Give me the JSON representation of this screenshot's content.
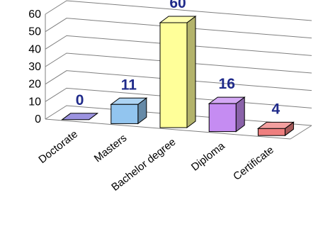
{
  "chart_data": {
    "type": "bar",
    "title": "",
    "xlabel": "",
    "ylabel": "",
    "categories": [
      "Doctorate",
      "Masters",
      "Bachelor degree",
      "Diploma",
      "Certificate"
    ],
    "values": [
      0,
      11,
      60,
      16,
      4
    ],
    "data_labels": [
      "0",
      "11",
      "60",
      "16",
      "4"
    ],
    "ylim": [
      0,
      60
    ],
    "yticks": [
      "0",
      "10",
      "20",
      "30",
      "40",
      "50",
      "60"
    ],
    "grid": true,
    "legend": "none",
    "three_d": true,
    "colors": [
      "#7b6fd6",
      "#92c5ef",
      "#ffff99",
      "#c58cf2",
      "#ee7f7f"
    ],
    "label_color": "#1f2a8a"
  }
}
